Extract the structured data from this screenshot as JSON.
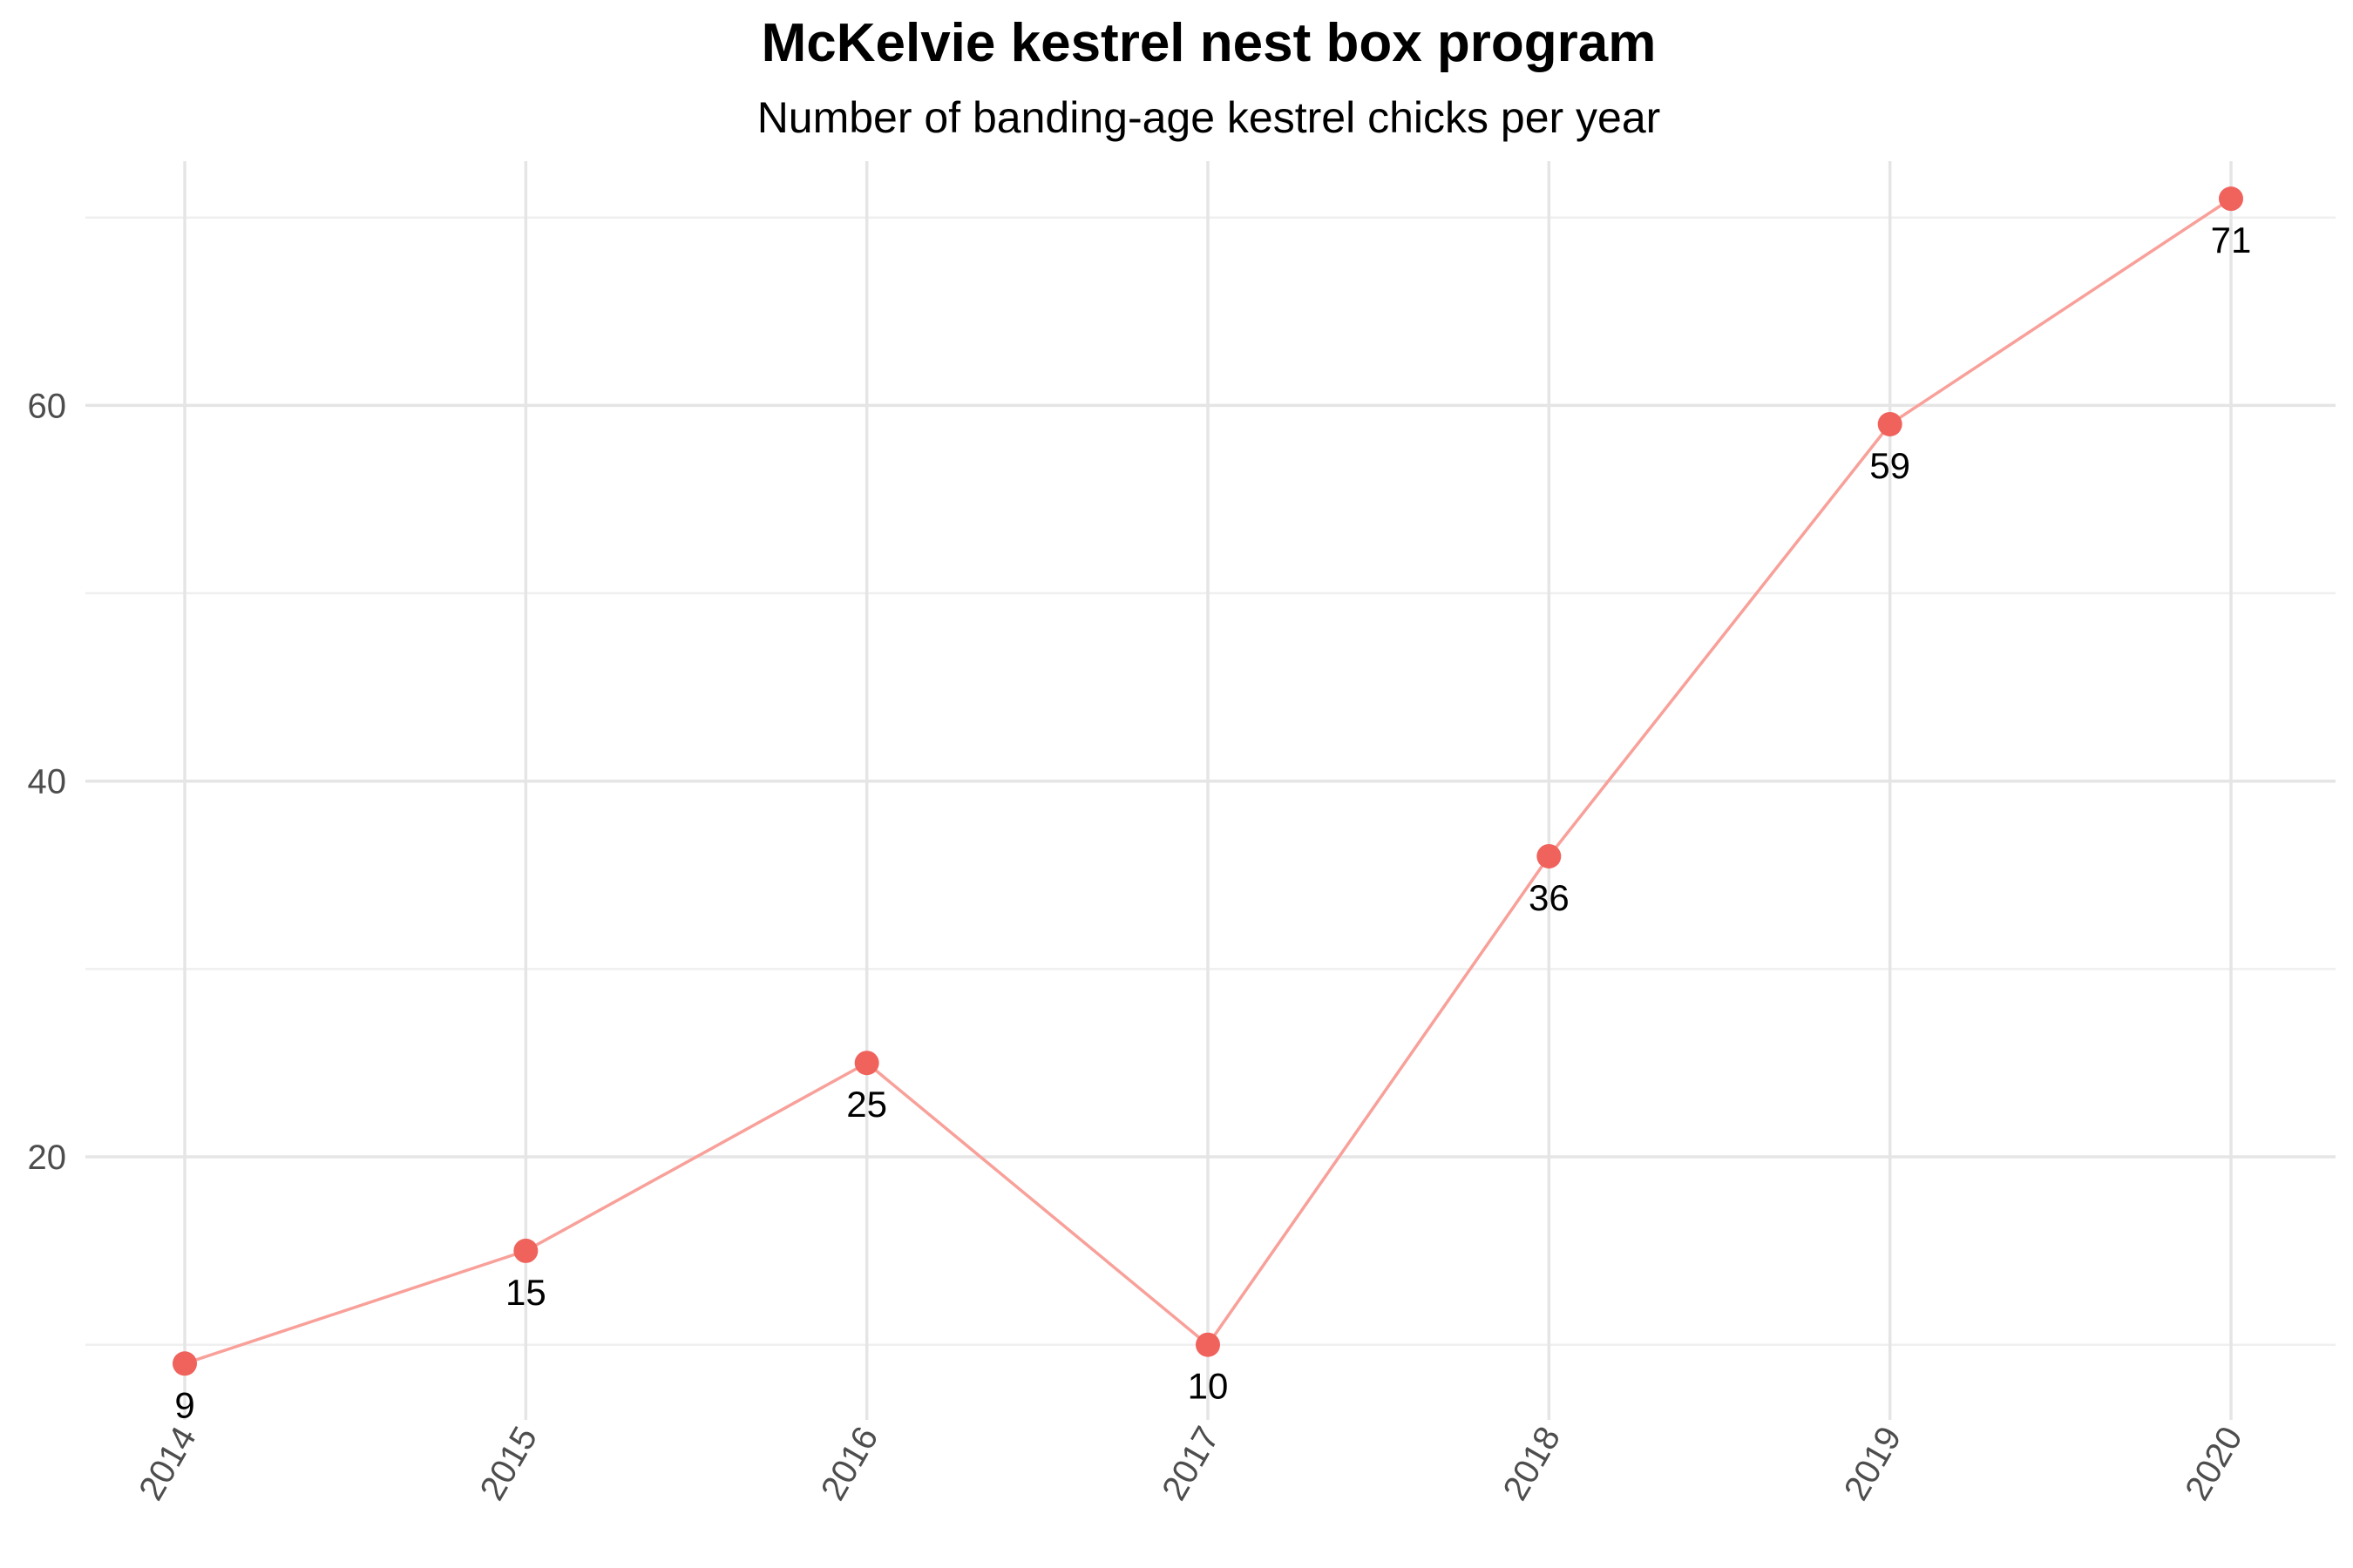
{
  "chart_data": {
    "type": "line",
    "title": "McKelvie kestrel nest box program",
    "subtitle": "Number of banding-age kestrel chicks per year",
    "xlabel": "",
    "ylabel": "",
    "x": [
      "2014",
      "2015",
      "2016",
      "2017",
      "2018",
      "2019",
      "2020"
    ],
    "series": [
      {
        "values": [
          9,
          15,
          25,
          10,
          36,
          59,
          71
        ],
        "line_color": "#f8a099",
        "point_color": "#f0625c"
      }
    ],
    "data_labels": [
      "9",
      "15",
      "25",
      "10",
      "36",
      "59",
      "71"
    ],
    "ylim": [
      6,
      73
    ],
    "y_ticks": [
      20,
      40,
      60
    ],
    "y_minor_ticks": [
      10,
      30,
      50,
      70
    ],
    "grid": true,
    "legend": "none",
    "x_tick_rotation": "-60 degrees"
  },
  "colors": {
    "grid_major": "#e5e5e5",
    "grid_minor": "#efefef",
    "tick_text": "#4d4d4d",
    "background": "#ffffff"
  }
}
